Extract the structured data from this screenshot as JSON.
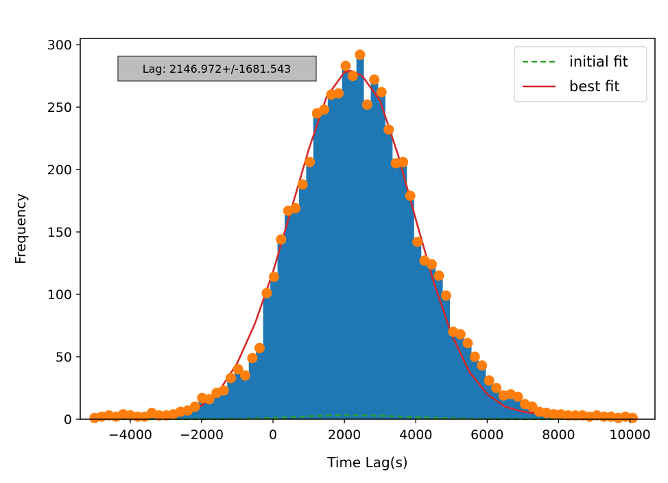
{
  "chart_data": {
    "type": "bar",
    "xlabel": "Time Lag(s)",
    "ylabel": "Frequency",
    "xlim": [
      -5400,
      10700
    ],
    "ylim": [
      0,
      305
    ],
    "xticks": [
      -4000,
      -2000,
      0,
      2000,
      4000,
      6000,
      8000,
      10000
    ],
    "xtick_labels": [
      "−4000",
      "−2000",
      "0",
      "2000",
      "4000",
      "6000",
      "8000",
      "10000"
    ],
    "yticks": [
      0,
      50,
      100,
      150,
      200,
      250,
      300
    ],
    "ytick_labels": [
      "0",
      "50",
      "100",
      "150",
      "200",
      "250",
      "300"
    ],
    "bin_width": 201,
    "histogram": {
      "x": [
        -5000,
        -4799,
        -4598,
        -4397,
        -4196,
        -3995,
        -3794,
        -3593,
        -3392,
        -3191,
        -2990,
        -2789,
        -2588,
        -2387,
        -2186,
        -1985,
        -1784,
        -1583,
        -1382,
        -1181,
        -980,
        -779,
        -578,
        -377,
        -176,
        25,
        226,
        427,
        628,
        829,
        1030,
        1231,
        1432,
        1633,
        1834,
        2035,
        2236,
        2437,
        2638,
        2839,
        3040,
        3241,
        3442,
        3643,
        3844,
        4045,
        4246,
        4447,
        4648,
        4849,
        5050,
        5251,
        5452,
        5653,
        5854,
        6055,
        6256,
        6457,
        6658,
        6859,
        7060,
        7261,
        7462,
        7663,
        7864,
        8065,
        8266,
        8467,
        8668,
        8869,
        9070,
        9271,
        9472,
        9673,
        9874,
        10075
      ],
      "values": [
        1,
        2,
        3,
        2,
        4,
        3,
        2,
        2,
        5,
        3,
        3,
        4,
        6,
        7,
        10,
        17,
        16,
        21,
        23,
        33,
        40,
        35,
        49,
        57,
        101,
        114,
        144,
        167,
        169,
        188,
        206,
        245,
        248,
        260,
        261,
        283,
        275,
        292,
        252,
        272,
        262,
        232,
        205,
        206,
        179,
        142,
        127,
        124,
        115,
        99,
        70,
        68,
        61,
        50,
        43,
        31,
        25,
        19,
        20,
        18,
        12,
        10,
        6,
        5,
        4,
        4,
        3,
        3,
        3,
        2,
        3,
        2,
        2,
        1,
        2,
        1
      ]
    },
    "series": [
      {
        "name": "initial fit",
        "color": "#2ca02c",
        "style": "dashed",
        "x": [
          -5000,
          -4000,
          -3000,
          -2000,
          -1000,
          0,
          500,
          1000,
          1500,
          2000,
          2500,
          3000,
          3500,
          4000,
          5000,
          6000,
          7000,
          8000,
          9000,
          10000
        ],
        "y": [
          0,
          0,
          0,
          0.05,
          0.3,
          1,
          1.6,
          2.3,
          2.9,
          3.2,
          3.1,
          2.8,
          2.2,
          1.6,
          0.7,
          0.2,
          0.05,
          0,
          0,
          0
        ]
      },
      {
        "name": "best fit",
        "color": "#d62728",
        "style": "solid",
        "x": [
          -5000,
          -4500,
          -4000,
          -3500,
          -3000,
          -2500,
          -2000,
          -1500,
          -1000,
          -500,
          0,
          500,
          1000,
          1500,
          2000,
          2200,
          2500,
          3000,
          3500,
          4000,
          4500,
          5000,
          5500,
          6000,
          6500,
          7000,
          7500,
          8000,
          8500,
          9000,
          9500,
          10000
        ],
        "y": [
          4,
          3,
          2.5,
          2.5,
          3,
          5,
          11,
          23,
          45,
          77,
          118,
          167,
          216,
          258,
          278,
          279,
          275,
          255,
          212,
          160,
          110,
          68,
          38,
          20,
          10,
          6,
          4,
          3,
          2.5,
          2,
          2,
          2
        ]
      }
    ],
    "points_color": "#ff7f0e",
    "bar_color": "#1f77b4",
    "legend_position": "top-right",
    "grid": false,
    "annotation": "Lag: 2146.972+/-1681.543"
  }
}
